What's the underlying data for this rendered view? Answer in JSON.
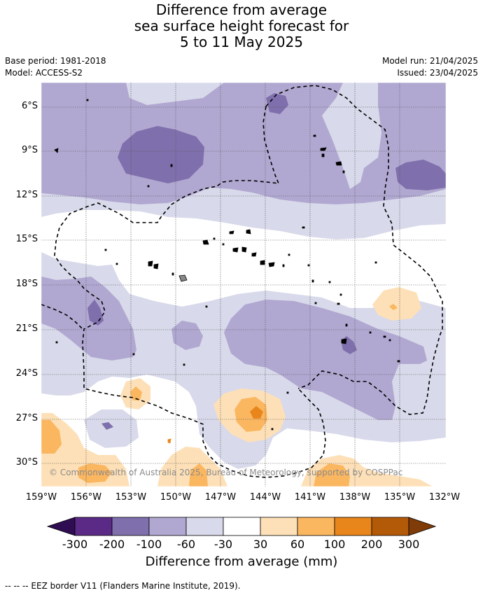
{
  "header": {
    "title_line1": "Difference from average",
    "title_line2": "sea surface height forecast for",
    "title_line3": "5 to 11 May 2025",
    "base_period": "Base period: 1981-2018",
    "model": "Model: ACCESS-S2",
    "model_run": "Model run: 21/04/2025",
    "issued": "Issued: 23/04/2025"
  },
  "map": {
    "credit": "© Commonwealth of Australia 2025, Bureau of Meteorology, supported by COSPPac",
    "lat_labels": [
      "6°S",
      "9°S",
      "12°S",
      "15°S",
      "18°S",
      "21°S",
      "24°S",
      "27°S",
      "30°S"
    ],
    "lon_labels": [
      "159°W",
      "156°W",
      "153°W",
      "150°W",
      "147°W",
      "144°W",
      "141°W",
      "138°W",
      "135°W",
      "132°W"
    ]
  },
  "colorbar": {
    "labels": [
      "-300",
      "-200",
      "-100",
      "-60",
      "-30",
      "30",
      "60",
      "100",
      "200",
      "300"
    ],
    "title": "Difference from average (mm)",
    "colors": {
      "lt_-300": "#2e0d52",
      "-300_-200": "#5b2a86",
      "-200_-100": "#7f6fac",
      "-100_-60": "#b1a8d1",
      "-60_-30": "#d8d9ea",
      "-30_30": "#ffffff",
      "30_60": "#fde0b7",
      "60_100": "#fbb660",
      "100_200": "#e8861b",
      "200_300": "#b35a09",
      "gt_300": "#7f3b08"
    }
  },
  "footnote": "--  --  -- EEZ border V11 (Flanders Marine Institute, 2019)."
}
